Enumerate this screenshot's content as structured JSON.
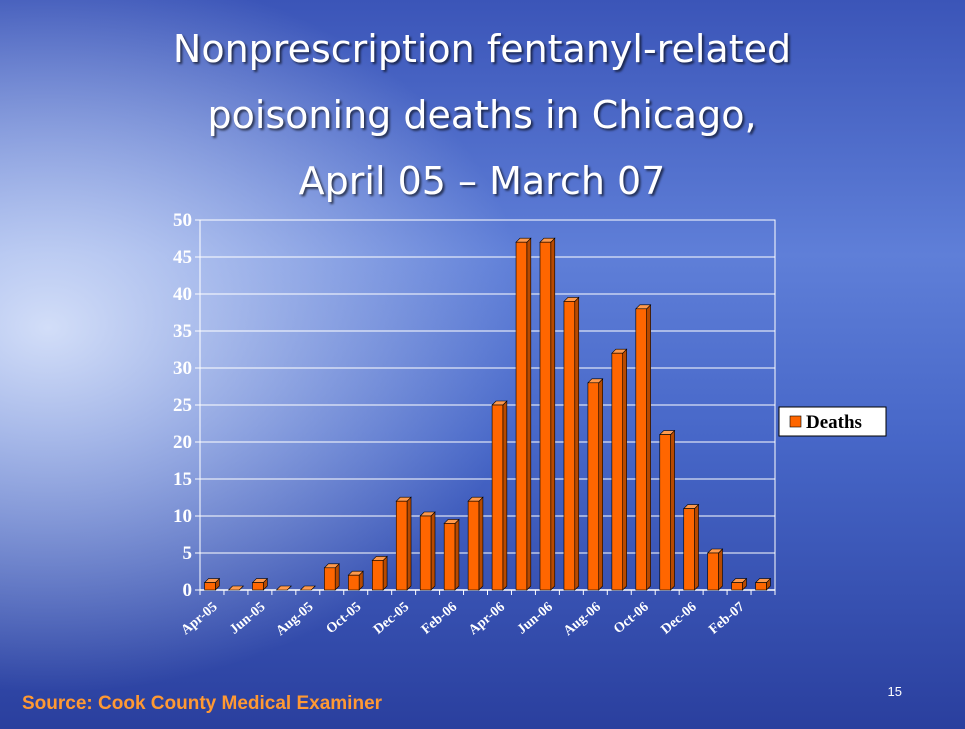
{
  "chart_data": {
    "type": "bar",
    "title": [
      "Nonprescription fentanyl-related",
      "poisoning deaths in Chicago,",
      "April 05 – March 07"
    ],
    "categories": [
      "Apr-05",
      null,
      "Jun-05",
      null,
      "Aug-05",
      null,
      "Oct-05",
      null,
      "Dec-05",
      null,
      "Feb-06",
      null,
      "Apr-06",
      null,
      "Jun-06",
      null,
      "Aug-06",
      null,
      "Oct-06",
      null,
      "Dec-06",
      null,
      "Feb-07",
      null
    ],
    "series": [
      {
        "name": "Deaths",
        "color": "#ff6600",
        "values": [
          1,
          0,
          1,
          0,
          0,
          3,
          2,
          4,
          12,
          10,
          9,
          12,
          25,
          47,
          47,
          39,
          28,
          32,
          38,
          21,
          11,
          5,
          1,
          1
        ]
      }
    ],
    "ylim": [
      0,
      50
    ],
    "yticks": [
      0,
      5,
      10,
      15,
      20,
      25,
      30,
      35,
      40,
      45,
      50
    ],
    "grid": true,
    "legend": "right"
  },
  "source": "Source:  Cook County Medical Examiner",
  "slide_number": "15"
}
